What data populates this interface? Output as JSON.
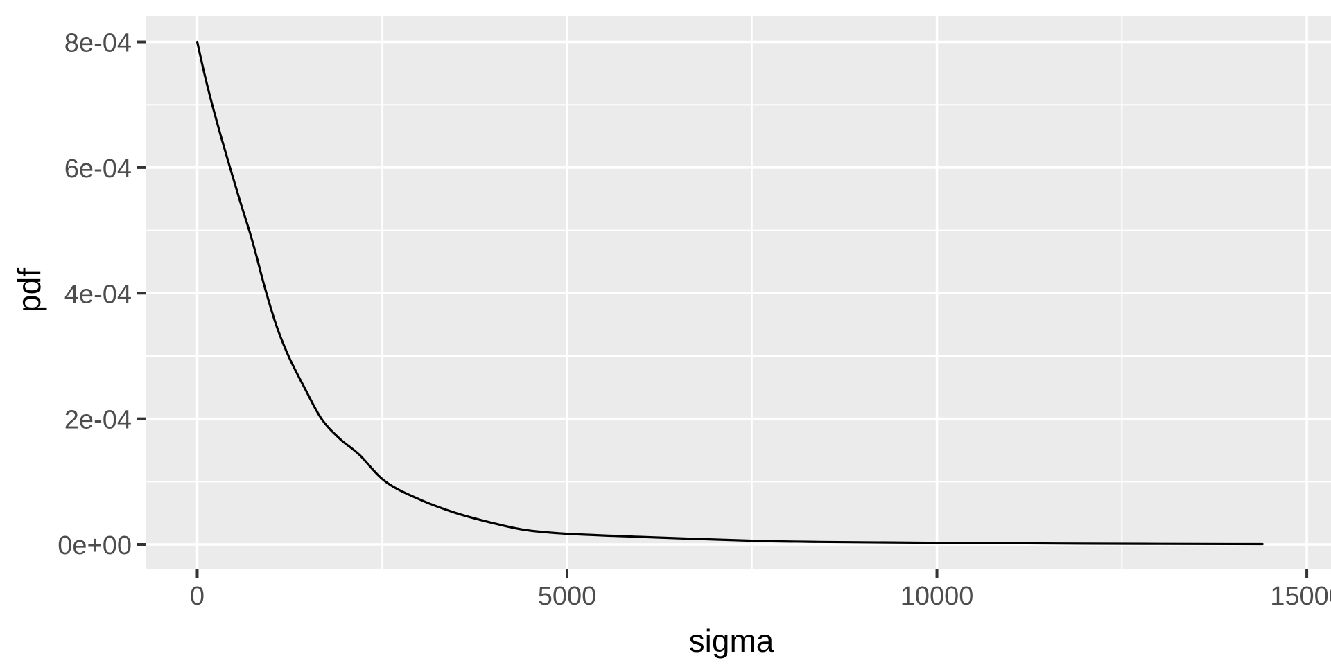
{
  "chart_data": {
    "type": "line",
    "title": "",
    "xlabel": "sigma",
    "ylabel": "pdf",
    "grid": "on",
    "legend": "none",
    "panel_background": "#EBEBEB",
    "gridline_color": "#FFFFFF",
    "tick_mark_color": "#333333",
    "tick_label_color": "#4D4D4D",
    "axis_title_color": "#000000",
    "line_color": "#000000",
    "x_domain": [
      -698,
      15346
    ],
    "y_domain": [
      -3.97e-05,
      0.0008414
    ],
    "x_major_ticks": {
      "values": [
        0,
        5000,
        10000,
        15000
      ],
      "labels": [
        "0",
        "5000",
        "10000",
        "15000"
      ]
    },
    "x_minor_ticks": [
      2500,
      7500,
      12500
    ],
    "y_major_ticks": {
      "values": [
        0,
        0.0002,
        0.0004,
        0.0006,
        0.0008
      ],
      "labels": [
        "0e+00",
        "2e-04",
        "4e-04",
        "6e-04",
        "8e-04"
      ]
    },
    "y_minor_ticks": [
      0.0001,
      0.0003,
      0.0005,
      0.0007
    ],
    "series": [
      {
        "name": "pdf",
        "color": "#000000",
        "x": [
          0,
          100,
          203,
          320,
          443,
          570,
          703,
          800,
          900,
          1060,
          1234,
          1440,
          1680,
          1930,
          2190,
          2546,
          3000,
          3500,
          4000,
          4440,
          5000,
          6000,
          7500,
          8400,
          10000,
          12000,
          14400
        ],
        "y": [
          0.0008,
          0.000748,
          0.0007,
          0.00065,
          0.0006,
          0.00055,
          0.0005,
          0.00046,
          0.000415,
          0.000352,
          0.0003,
          0.000252,
          0.0002,
          0.000168,
          0.000143,
          0.0001,
          7.2e-05,
          5e-05,
          3.4e-05,
          2.3e-05,
          1.7e-05,
          1.2e-05,
          5.9e-06,
          4.1e-06,
          2.5e-06,
          1.2e-06,
          5e-07
        ]
      }
    ]
  }
}
